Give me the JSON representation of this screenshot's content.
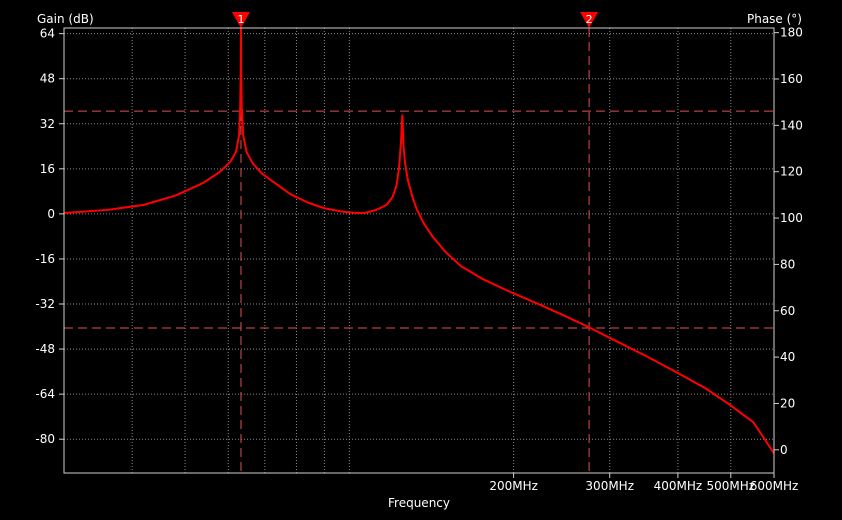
{
  "chart_data": {
    "type": "line",
    "title": "",
    "xlabel": "Frequency",
    "ylabel_left": "Gain (dB)",
    "ylabel_right": "Phase (°)",
    "x_scale": "log",
    "x_unit": "MHz",
    "xlim": [
      30,
      600
    ],
    "x_ticks": [
      {
        "value": 200,
        "label": "200MHz"
      },
      {
        "value": 300,
        "label": "300MHz"
      },
      {
        "value": 400,
        "label": "400MHz"
      },
      {
        "value": 500,
        "label": "500MHz"
      },
      {
        "value": 600,
        "label": "600MHz"
      }
    ],
    "x_minor_gridlines": [
      40,
      50,
      60,
      70,
      80,
      90,
      100
    ],
    "y_left": {
      "lim": [
        -92,
        66
      ],
      "ticks": [
        64,
        48,
        32,
        16,
        0,
        -16,
        -32,
        -48,
        -64,
        -80
      ]
    },
    "y_right": {
      "lim": [
        -10,
        182
      ],
      "ticks": [
        180,
        160,
        140,
        120,
        100,
        80,
        60,
        40,
        20,
        0
      ]
    },
    "grid": true,
    "series": [
      {
        "name": "",
        "color": "#ff0000",
        "axis": "left",
        "points": [
          [
            30,
            0.3
          ],
          [
            36,
            1.4
          ],
          [
            42,
            3.2
          ],
          [
            48,
            6.5
          ],
          [
            54,
            11
          ],
          [
            58,
            15
          ],
          [
            60.5,
            18.5
          ],
          [
            62,
            22
          ],
          [
            62.8,
            28
          ],
          [
            63.1,
            38
          ],
          [
            63.25,
            52
          ],
          [
            63.3,
            66
          ],
          [
            63.35,
            52
          ],
          [
            63.5,
            38
          ],
          [
            63.9,
            28
          ],
          [
            64.8,
            22
          ],
          [
            66.5,
            18
          ],
          [
            69,
            14.5
          ],
          [
            73,
            11
          ],
          [
            78,
            7
          ],
          [
            84,
            4
          ],
          [
            90,
            2
          ],
          [
            97,
            0.8
          ],
          [
            103,
            0.3
          ],
          [
            107,
            0.4
          ],
          [
            112,
            1.4
          ],
          [
            117,
            3.2
          ],
          [
            120,
            6
          ],
          [
            122,
            10
          ],
          [
            123.3,
            16
          ],
          [
            124.4,
            26
          ],
          [
            124.8,
            32.5
          ],
          [
            125.1,
            35
          ],
          [
            125.3,
            31
          ],
          [
            125.7,
            24
          ],
          [
            126.5,
            18
          ],
          [
            128,
            12
          ],
          [
            130.5,
            6
          ],
          [
            133,
            1.5
          ],
          [
            137,
            -3.5
          ],
          [
            142,
            -8
          ],
          [
            150,
            -13.5
          ],
          [
            160,
            -18.5
          ],
          [
            175,
            -23
          ],
          [
            195,
            -27.3
          ],
          [
            225,
            -32.5
          ],
          [
            250,
            -36.5
          ],
          [
            275,
            -40.3
          ],
          [
            300,
            -44
          ],
          [
            350,
            -50.5
          ],
          [
            400,
            -56.5
          ],
          [
            450,
            -62
          ],
          [
            500,
            -68
          ],
          [
            550,
            -74
          ],
          [
            600,
            -85
          ]
        ]
      }
    ],
    "markers": [
      {
        "id": "1",
        "frequency": 63.3
      },
      {
        "id": "2",
        "frequency": 275
      }
    ],
    "reference_lines": {
      "gain_levels": [
        36.5,
        -40.5
      ],
      "marker_frequencies": [
        63.3,
        275
      ]
    },
    "colors": {
      "background": "#000000",
      "trace": "#ff0000",
      "marker": "#ff0000",
      "reference_line": "#e05050",
      "grid": "#8a8a8a",
      "frame": "#cfcfcf",
      "text": "#ffffff"
    }
  }
}
